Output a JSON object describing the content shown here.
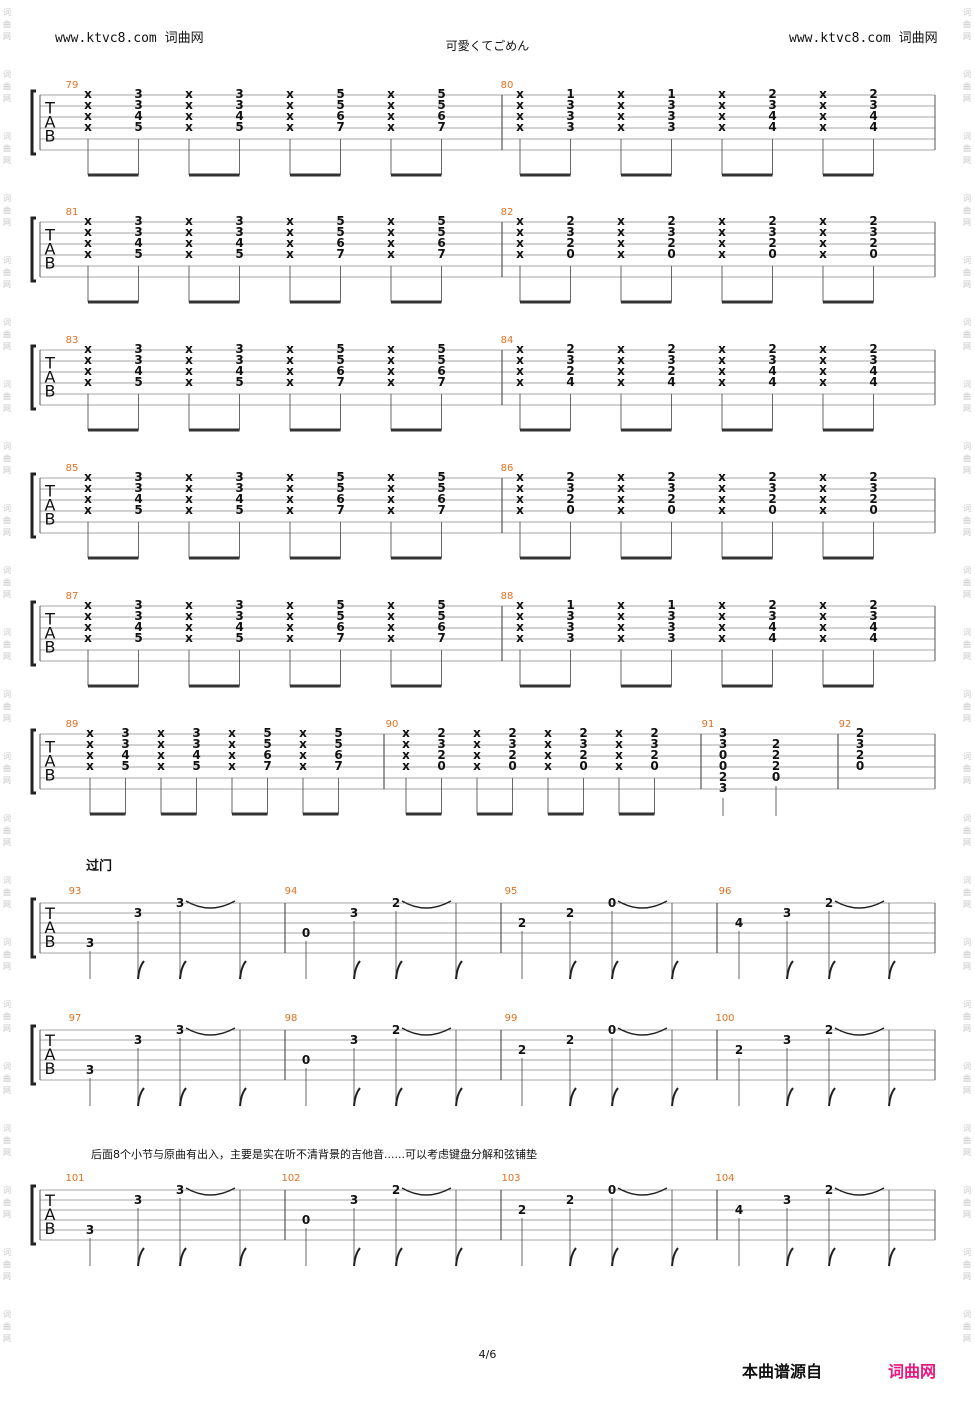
{
  "header": {
    "site_left": "www.ktvc8.com",
    "site_left_cn": "词曲网",
    "site_right": "www.ktvc8.com",
    "site_right_cn": "词曲网",
    "song_title": "可愛くてごめん"
  },
  "watermark": {
    "text": [
      "词",
      "曲",
      "网"
    ]
  },
  "tab_clef": [
    "T",
    "A",
    "B"
  ],
  "section_label": "过门",
  "note_text": "后面8个小节与原曲有出入，主要是实在听不清背景的吉他音......可以考虑键盘分解和弦铺垫",
  "footer": {
    "page": "4/6",
    "source": "本曲谱源自",
    "site": "词曲网"
  },
  "colors": {
    "measure_number": "#e07020",
    "site_brand": "#e6187f",
    "watermark": "#c6c6c6"
  },
  "strum_systems": [
    {
      "measures": [
        {
          "number": "79",
          "beats": [
            [
              "x",
              "x",
              "x",
              "x"
            ],
            [
              "3",
              "3",
              "4",
              "5"
            ],
            [
              "x",
              "x",
              "x",
              "x"
            ],
            [
              "3",
              "3",
              "4",
              "5"
            ],
            [
              "x",
              "x",
              "x",
              "x"
            ],
            [
              "5",
              "5",
              "6",
              "7"
            ],
            [
              "x",
              "x",
              "x",
              "x"
            ],
            [
              "5",
              "5",
              "6",
              "7"
            ]
          ]
        },
        {
          "number": "80",
          "beats": [
            [
              "x",
              "x",
              "x",
              "x"
            ],
            [
              "1",
              "3",
              "3",
              "3"
            ],
            [
              "x",
              "x",
              "x",
              "x"
            ],
            [
              "1",
              "3",
              "3",
              "3"
            ],
            [
              "x",
              "x",
              "x",
              "x"
            ],
            [
              "2",
              "3",
              "4",
              "4"
            ],
            [
              "x",
              "x",
              "x",
              "x"
            ],
            [
              "2",
              "3",
              "4",
              "4"
            ]
          ]
        }
      ]
    },
    {
      "measures": [
        {
          "number": "81",
          "beats": [
            [
              "x",
              "x",
              "x",
              "x"
            ],
            [
              "3",
              "3",
              "4",
              "5"
            ],
            [
              "x",
              "x",
              "x",
              "x"
            ],
            [
              "3",
              "3",
              "4",
              "5"
            ],
            [
              "x",
              "x",
              "x",
              "x"
            ],
            [
              "5",
              "5",
              "6",
              "7"
            ],
            [
              "x",
              "x",
              "x",
              "x"
            ],
            [
              "5",
              "5",
              "6",
              "7"
            ]
          ]
        },
        {
          "number": "82",
          "beats": [
            [
              "x",
              "x",
              "x",
              "x"
            ],
            [
              "2",
              "3",
              "2",
              "0"
            ],
            [
              "x",
              "x",
              "x",
              "x"
            ],
            [
              "2",
              "3",
              "2",
              "0"
            ],
            [
              "x",
              "x",
              "x",
              "x"
            ],
            [
              "2",
              "3",
              "2",
              "0"
            ],
            [
              "x",
              "x",
              "x",
              "x"
            ],
            [
              "2",
              "3",
              "2",
              "0"
            ]
          ]
        }
      ]
    },
    {
      "measures": [
        {
          "number": "83",
          "beats": [
            [
              "x",
              "x",
              "x",
              "x"
            ],
            [
              "3",
              "3",
              "4",
              "5"
            ],
            [
              "x",
              "x",
              "x",
              "x"
            ],
            [
              "3",
              "3",
              "4",
              "5"
            ],
            [
              "x",
              "x",
              "x",
              "x"
            ],
            [
              "5",
              "5",
              "6",
              "7"
            ],
            [
              "x",
              "x",
              "x",
              "x"
            ],
            [
              "5",
              "5",
              "6",
              "7"
            ]
          ]
        },
        {
          "number": "84",
          "beats": [
            [
              "x",
              "x",
              "x",
              "x"
            ],
            [
              "2",
              "3",
              "2",
              "4"
            ],
            [
              "x",
              "x",
              "x",
              "x"
            ],
            [
              "2",
              "3",
              "2",
              "4"
            ],
            [
              "x",
              "x",
              "x",
              "x"
            ],
            [
              "2",
              "3",
              "4",
              "4"
            ],
            [
              "x",
              "x",
              "x",
              "x"
            ],
            [
              "2",
              "3",
              "4",
              "4"
            ]
          ]
        }
      ]
    },
    {
      "measures": [
        {
          "number": "85",
          "beats": [
            [
              "x",
              "x",
              "x",
              "x"
            ],
            [
              "3",
              "3",
              "4",
              "5"
            ],
            [
              "x",
              "x",
              "x",
              "x"
            ],
            [
              "3",
              "3",
              "4",
              "5"
            ],
            [
              "x",
              "x",
              "x",
              "x"
            ],
            [
              "5",
              "5",
              "6",
              "7"
            ],
            [
              "x",
              "x",
              "x",
              "x"
            ],
            [
              "5",
              "5",
              "6",
              "7"
            ]
          ]
        },
        {
          "number": "86",
          "beats": [
            [
              "x",
              "x",
              "x",
              "x"
            ],
            [
              "2",
              "3",
              "2",
              "0"
            ],
            [
              "x",
              "x",
              "x",
              "x"
            ],
            [
              "2",
              "3",
              "2",
              "0"
            ],
            [
              "x",
              "x",
              "x",
              "x"
            ],
            [
              "2",
              "3",
              "2",
              "0"
            ],
            [
              "x",
              "x",
              "x",
              "x"
            ],
            [
              "2",
              "3",
              "2",
              "0"
            ]
          ]
        }
      ]
    },
    {
      "measures": [
        {
          "number": "87",
          "beats": [
            [
              "x",
              "x",
              "x",
              "x"
            ],
            [
              "3",
              "3",
              "4",
              "5"
            ],
            [
              "x",
              "x",
              "x",
              "x"
            ],
            [
              "3",
              "3",
              "4",
              "5"
            ],
            [
              "x",
              "x",
              "x",
              "x"
            ],
            [
              "5",
              "5",
              "6",
              "7"
            ],
            [
              "x",
              "x",
              "x",
              "x"
            ],
            [
              "5",
              "5",
              "6",
              "7"
            ]
          ]
        },
        {
          "number": "88",
          "beats": [
            [
              "x",
              "x",
              "x",
              "x"
            ],
            [
              "1",
              "3",
              "3",
              "3"
            ],
            [
              "x",
              "x",
              "x",
              "x"
            ],
            [
              "1",
              "3",
              "3",
              "3"
            ],
            [
              "x",
              "x",
              "x",
              "x"
            ],
            [
              "2",
              "3",
              "4",
              "4"
            ],
            [
              "x",
              "x",
              "x",
              "x"
            ],
            [
              "2",
              "3",
              "4",
              "4"
            ]
          ]
        }
      ]
    },
    {
      "measures": [
        {
          "number": "89",
          "beats": [
            [
              "x",
              "x",
              "x",
              "x"
            ],
            [
              "3",
              "3",
              "4",
              "5"
            ],
            [
              "x",
              "x",
              "x",
              "x"
            ],
            [
              "3",
              "3",
              "4",
              "5"
            ],
            [
              "x",
              "x",
              "x",
              "x"
            ],
            [
              "5",
              "5",
              "6",
              "7"
            ],
            [
              "x",
              "x",
              "x",
              "x"
            ],
            [
              "5",
              "5",
              "6",
              "7"
            ]
          ]
        },
        {
          "number": "90",
          "beats": [
            [
              "x",
              "x",
              "x",
              "x"
            ],
            [
              "2",
              "3",
              "2",
              "0"
            ],
            [
              "x",
              "x",
              "x",
              "x"
            ],
            [
              "2",
              "3",
              "2",
              "0"
            ],
            [
              "x",
              "x",
              "x",
              "x"
            ],
            [
              "2",
              "3",
              "2",
              "0"
            ],
            [
              "x",
              "x",
              "x",
              "x"
            ],
            [
              "2",
              "3",
              "2",
              "0"
            ]
          ]
        },
        {
          "number": "91",
          "beats": [
            [
              "3",
              "3",
              "0",
              "0",
              "2",
              "3"
            ],
            [
              "",
              "2",
              "2",
              "2",
              "0",
              ""
            ]
          ]
        },
        {
          "number": "92",
          "beats": [
            [
              "2",
              "3",
              "2",
              "0"
            ]
          ]
        }
      ]
    }
  ],
  "melody_systems": [
    {
      "measures": [
        {
          "number": "93",
          "notes": [
            {
              "fret": "3",
              "string": 5
            },
            {
              "fret": "3",
              "string": 2
            },
            {
              "fret": "3",
              "string": 1
            }
          ]
        },
        {
          "number": "94",
          "notes": [
            {
              "fret": "0",
              "string": 4
            },
            {
              "fret": "3",
              "string": 2
            },
            {
              "fret": "2",
              "string": 1
            }
          ]
        },
        {
          "number": "95",
          "notes": [
            {
              "fret": "2",
              "string": 3
            },
            {
              "fret": "2",
              "string": 2
            },
            {
              "fret": "0",
              "string": 1
            }
          ]
        },
        {
          "number": "96",
          "notes": [
            {
              "fret": "4",
              "string": 3
            },
            {
              "fret": "3",
              "string": 2
            },
            {
              "fret": "2",
              "string": 1
            }
          ]
        }
      ]
    },
    {
      "measures": [
        {
          "number": "97",
          "notes": [
            {
              "fret": "3",
              "string": 5
            },
            {
              "fret": "3",
              "string": 2
            },
            {
              "fret": "3",
              "string": 1
            }
          ]
        },
        {
          "number": "98",
          "notes": [
            {
              "fret": "0",
              "string": 4
            },
            {
              "fret": "3",
              "string": 2
            },
            {
              "fret": "2",
              "string": 1
            }
          ]
        },
        {
          "number": "99",
          "notes": [
            {
              "fret": "2",
              "string": 3
            },
            {
              "fret": "2",
              "string": 2
            },
            {
              "fret": "0",
              "string": 1
            }
          ]
        },
        {
          "number": "100",
          "notes": [
            {
              "fret": "2",
              "string": 3
            },
            {
              "fret": "3",
              "string": 2
            },
            {
              "fret": "2",
              "string": 1
            }
          ]
        }
      ]
    },
    {
      "measures": [
        {
          "number": "101",
          "notes": [
            {
              "fret": "3",
              "string": 5
            },
            {
              "fret": "3",
              "string": 2
            },
            {
              "fret": "3",
              "string": 1
            }
          ]
        },
        {
          "number": "102",
          "notes": [
            {
              "fret": "0",
              "string": 4
            },
            {
              "fret": "3",
              "string": 2
            },
            {
              "fret": "2",
              "string": 1
            }
          ]
        },
        {
          "number": "103",
          "notes": [
            {
              "fret": "2",
              "string": 3
            },
            {
              "fret": "2",
              "string": 2
            },
            {
              "fret": "0",
              "string": 1
            }
          ]
        },
        {
          "number": "104",
          "notes": [
            {
              "fret": "4",
              "string": 3
            },
            {
              "fret": "3",
              "string": 2
            },
            {
              "fret": "2",
              "string": 1
            }
          ]
        }
      ]
    }
  ]
}
